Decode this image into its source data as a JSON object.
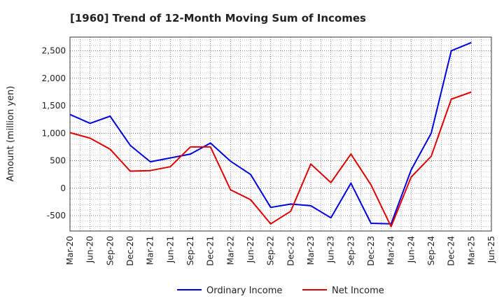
{
  "chart_data": {
    "type": "line",
    "title": "[1960]  Trend of 12-Month Moving Sum of Incomes",
    "xlabel": "",
    "ylabel": "Amount (million yen)",
    "ylim": [
      -780,
      2750
    ],
    "yticks": [
      -500,
      0,
      500,
      1000,
      1500,
      2000,
      2500
    ],
    "ytick_labels": [
      "-500",
      "0",
      "500",
      "1,000",
      "1,500",
      "2,000",
      "2,500"
    ],
    "categories": [
      "Mar-20",
      "Jun-20",
      "Sep-20",
      "Dec-20",
      "Mar-21",
      "Jun-21",
      "Sep-21",
      "Dec-21",
      "Mar-22",
      "Jun-22",
      "Sep-22",
      "Dec-22",
      "Mar-23",
      "Jun-23",
      "Sep-23",
      "Dec-23",
      "Mar-24",
      "Jun-24",
      "Sep-24",
      "Dec-24",
      "Mar-25",
      "Jun-25"
    ],
    "grid": true,
    "legend_position": "bottom-center",
    "series": [
      {
        "name": "Ordinary Income",
        "color": "#0000dd",
        "values": [
          1340,
          1180,
          1310,
          780,
          480,
          550,
          620,
          820,
          490,
          250,
          -350,
          -290,
          -320,
          -540,
          90,
          -640,
          -650,
          330,
          1000,
          2500,
          2650,
          null
        ]
      },
      {
        "name": "Net Income",
        "color": "#dd0000",
        "values": [
          1010,
          910,
          710,
          310,
          320,
          390,
          750,
          750,
          -30,
          -210,
          -650,
          -420,
          440,
          100,
          620,
          60,
          -700,
          200,
          580,
          1620,
          1750,
          null
        ]
      }
    ]
  }
}
